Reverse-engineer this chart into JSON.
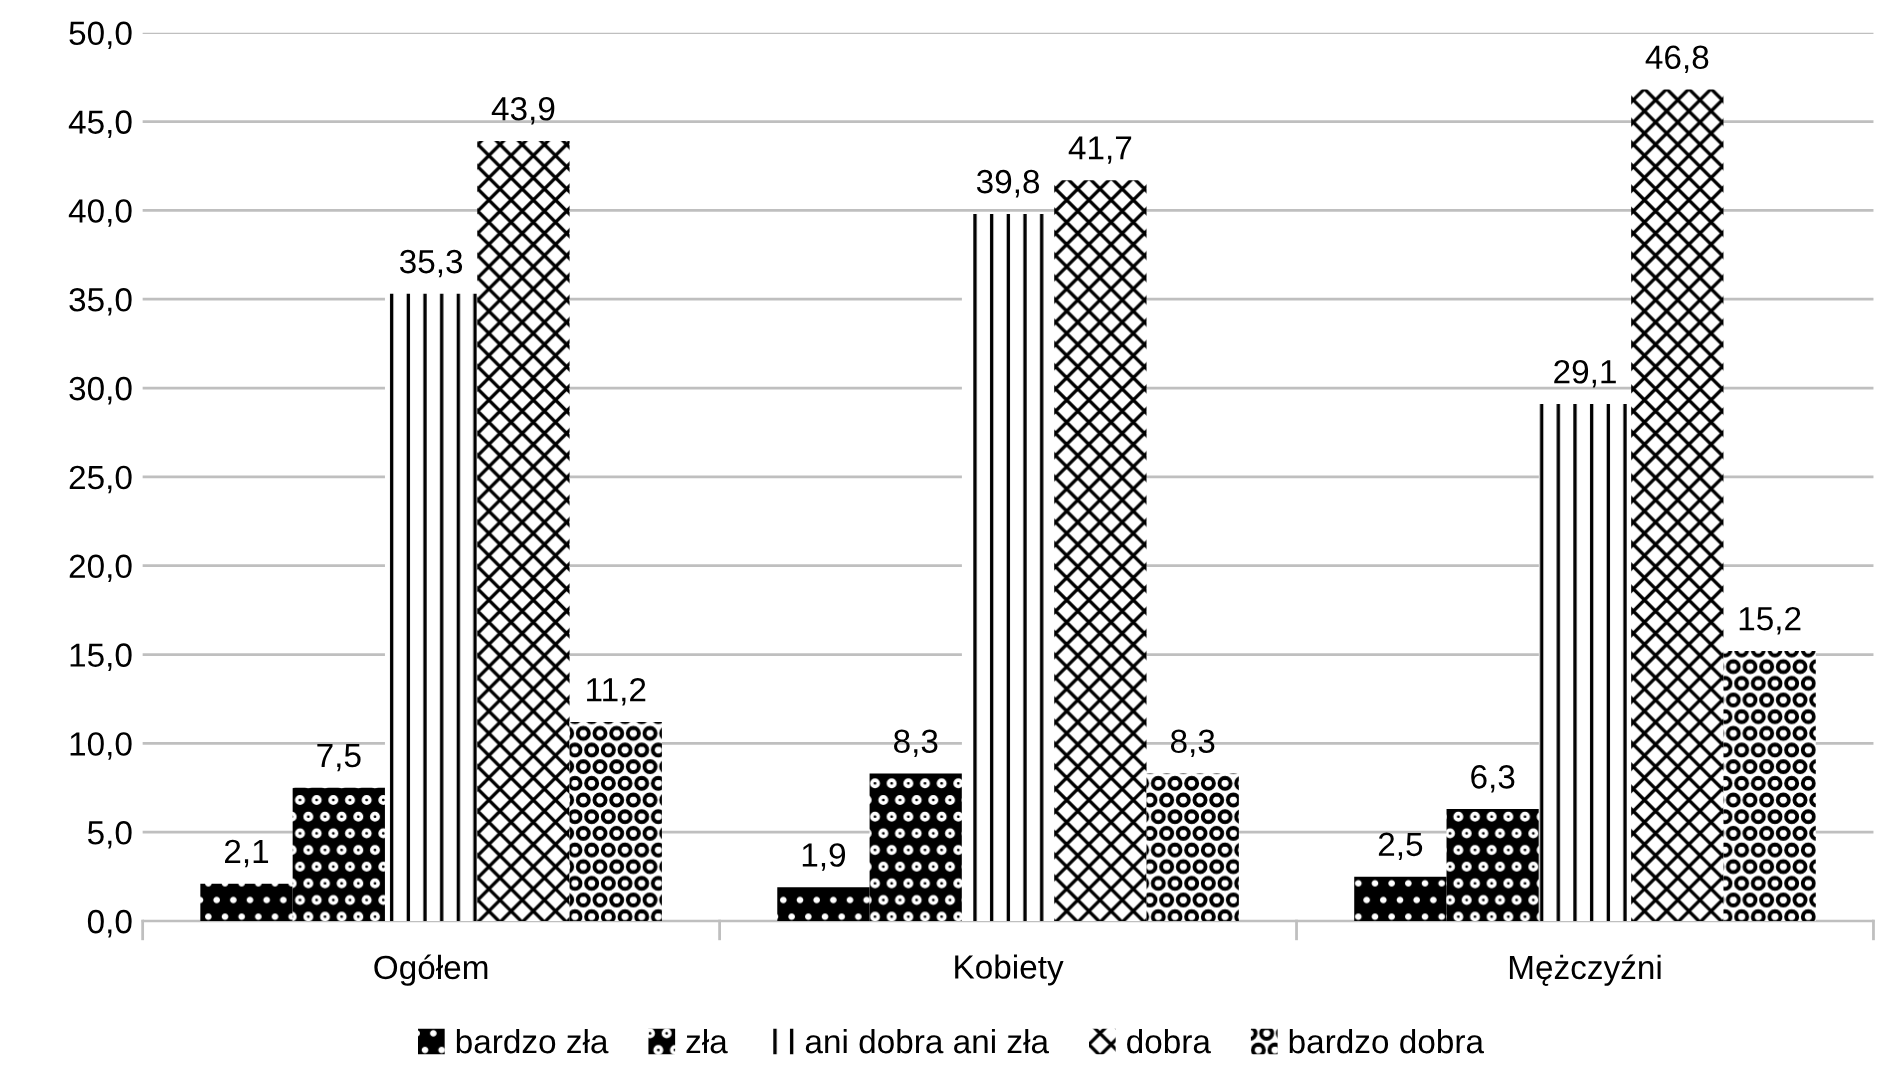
{
  "chart_data": {
    "type": "bar",
    "categories": [
      "Ogółem",
      "Kobiety",
      "Mężczyźni"
    ],
    "series": [
      {
        "name": "bardzo zła",
        "color": "#000000",
        "values": [
          2.1,
          1.9,
          2.5
        ],
        "value_labels": [
          "2,1",
          "1,9",
          "2,5"
        ]
      },
      {
        "name": "zła",
        "color": "#000000",
        "values": [
          7.5,
          8.3,
          6.3
        ],
        "value_labels": [
          "7,5",
          "8,3",
          "6,3"
        ]
      },
      {
        "name": "ani dobra ani zła",
        "color": "#ffffff",
        "values": [
          35.3,
          39.8,
          29.1
        ],
        "value_labels": [
          "35,3",
          "39,8",
          "29,1"
        ]
      },
      {
        "name": "dobra",
        "color": "#ffffff",
        "values": [
          43.9,
          41.7,
          46.8
        ],
        "value_labels": [
          "43,9",
          "41,7",
          "46,8"
        ]
      },
      {
        "name": "bardzo dobra",
        "color": "#ffffff",
        "values": [
          11.2,
          8.3,
          15.2
        ],
        "value_labels": [
          "11,2",
          "8,3",
          "15,2"
        ]
      }
    ],
    "ylim": [
      0,
      50
    ],
    "yticks": [
      {
        "value": 0,
        "label": "0,0"
      },
      {
        "value": 5,
        "label": "5,0"
      },
      {
        "value": 10,
        "label": "10,0"
      },
      {
        "value": 15,
        "label": "15,0"
      },
      {
        "value": 20,
        "label": "20,0"
      },
      {
        "value": 25,
        "label": "25,0"
      },
      {
        "value": 30,
        "label": "30,0"
      },
      {
        "value": 35,
        "label": "35,0"
      },
      {
        "value": 40,
        "label": "40,0"
      },
      {
        "value": 45,
        "label": "45,0"
      },
      {
        "value": 50,
        "label": "50,0"
      }
    ],
    "grid": "y",
    "legend": "bottom"
  }
}
